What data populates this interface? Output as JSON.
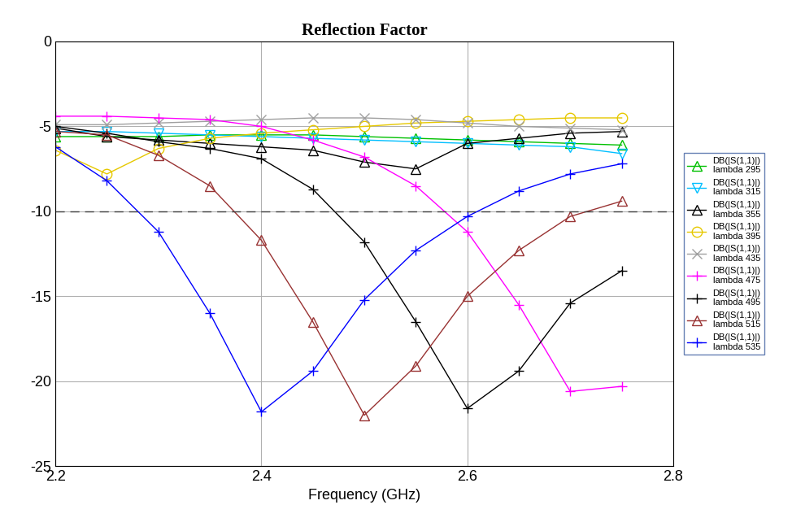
{
  "chart_data": {
    "type": "line",
    "title": "Reflection Factor",
    "x_label": "Frequency (GHz)",
    "x": [
      2.2,
      2.25,
      2.3,
      2.35,
      2.4,
      2.45,
      2.5,
      2.55,
      2.6,
      2.65,
      2.7,
      2.75
    ],
    "series": [
      {
        "name": "DB(|S(1,1)|)\nlambda 295",
        "color": "#00c000",
        "marker": "triangle_up",
        "values": [
          -5.6,
          -5.6,
          -5.6,
          -5.5,
          -5.5,
          -5.5,
          -5.6,
          -5.7,
          -5.8,
          -5.9,
          -6.0,
          -6.1
        ]
      },
      {
        "name": "DB(|S(1,1)|)\nlambda 315",
        "color": "#00bfff",
        "marker": "triangle_down",
        "values": [
          -5.3,
          -5.3,
          -5.4,
          -5.5,
          -5.6,
          -5.7,
          -5.8,
          -5.9,
          -6.0,
          -6.1,
          -6.2,
          -6.6
        ]
      },
      {
        "name": "DB(|S(1,1)|)\nlambda 355",
        "color": "#000000",
        "marker": "triangle_up",
        "values": [
          -5.1,
          -5.6,
          -5.8,
          -6.0,
          -6.2,
          -6.4,
          -7.1,
          -7.5,
          -6.0,
          -5.7,
          -5.4,
          -5.3
        ]
      },
      {
        "name": "DB(|S(1,1)|)\nlambda 395",
        "color": "#e6c800",
        "marker": "circle",
        "values": [
          -6.4,
          -7.8,
          -6.3,
          -5.7,
          -5.4,
          -5.2,
          -5.0,
          -4.8,
          -4.7,
          -4.6,
          -4.5,
          -4.5
        ]
      },
      {
        "name": "DB(|S(1,1)|)\nlambda 435",
        "color": "#a0a0a0",
        "marker": "x",
        "values": [
          -4.9,
          -4.9,
          -4.8,
          -4.7,
          -4.6,
          -4.5,
          -4.5,
          -4.6,
          -4.8,
          -5.0,
          -5.1,
          -5.2
        ]
      },
      {
        "name": "DB(|S(1,1)|)\nlambda 475",
        "color": "#ff00ff",
        "marker": "plus",
        "values": [
          -4.4,
          -4.4,
          -4.5,
          -4.6,
          -5.0,
          -5.8,
          -6.8,
          -8.5,
          -11.2,
          -15.5,
          -20.6,
          -20.3
        ]
      },
      {
        "name": "DB(|S(1,1)|)\nlambda 495",
        "color": "#000000",
        "marker": "plus",
        "values": [
          -5.0,
          -5.4,
          -5.9,
          -6.3,
          -6.9,
          -8.7,
          -11.8,
          -16.5,
          -21.6,
          -19.4,
          -15.4,
          -13.5
        ]
      },
      {
        "name": "DB(|S(1,1)|)\nlambda 515",
        "color": "#993333",
        "marker": "triangle_up",
        "values": [
          -5.3,
          -5.5,
          -6.7,
          -8.5,
          -11.7,
          -16.5,
          -22.0,
          -19.1,
          -15.0,
          -12.3,
          -10.3,
          -9.4
        ]
      },
      {
        "name": "DB(|S(1,1)|)\nlambda 535",
        "color": "#0000ff",
        "marker": "plus",
        "values": [
          -6.2,
          -8.2,
          -11.2,
          -16.0,
          -21.8,
          -19.4,
          -15.2,
          -12.3,
          -10.3,
          -8.8,
          -7.8,
          -7.2
        ]
      }
    ],
    "xlim": [
      2.2,
      2.8
    ],
    "xticks": [
      2.2,
      2.4,
      2.6,
      2.8
    ],
    "ylim": [
      -25,
      0
    ],
    "yticks": [
      -25,
      -20,
      -15,
      -10,
      -5,
      0
    ],
    "threshold": -10,
    "grid": true,
    "legend": "right"
  }
}
